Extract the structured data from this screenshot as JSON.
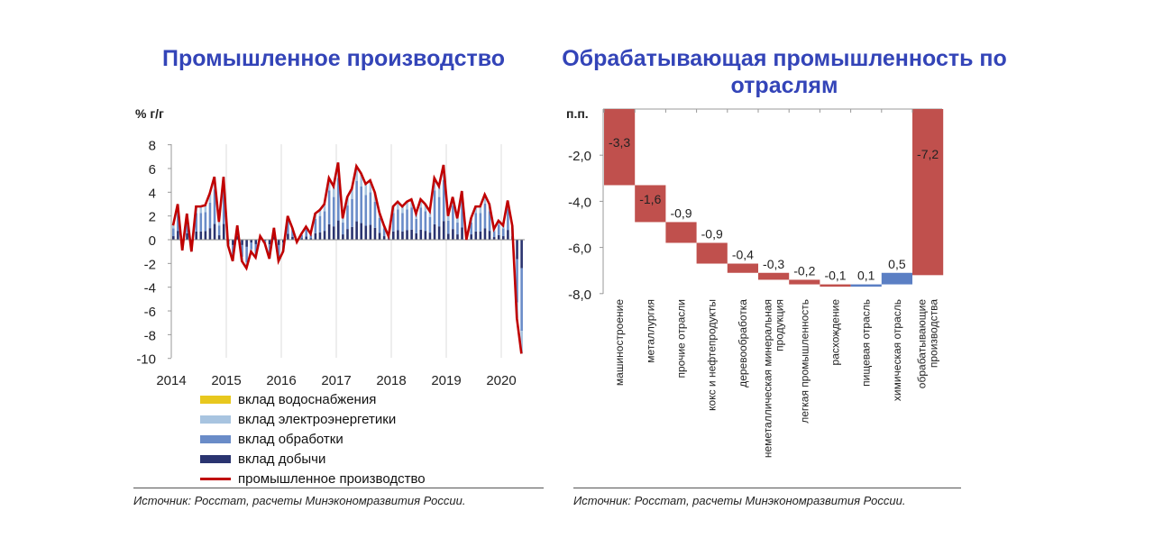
{
  "chart_data": [
    {
      "type": "bar+line",
      "title": "Промышленное производство",
      "ylabel": "% г/г",
      "ylim": [
        -10,
        8
      ],
      "yticks": [
        "8",
        "6",
        "4",
        "2",
        "0",
        "-2",
        "-4",
        "-6",
        "-8",
        "-10"
      ],
      "xticks": [
        "2014",
        "2015",
        "2016",
        "2017",
        "2018",
        "2019",
        "2020"
      ],
      "legend": [
        "вклад водоснабжения",
        "вклад электроэнергетики",
        "вклад обработки",
        "вклад добычи",
        "промышленное производство"
      ],
      "colors": {
        "water": "#e8c81e",
        "energy": "#a8c4e0",
        "manufacturing": "#6a8cc8",
        "mining": "#2a3470",
        "line": "#c00000"
      },
      "series_line": [
        1.2,
        3.0,
        -0.9,
        2.2,
        -1.0,
        2.8,
        2.8,
        2.9,
        3.9,
        5.3,
        1.5,
        5.3,
        -0.5,
        -1.8,
        1.2,
        -1.8,
        -2.4,
        -1.0,
        -1.5,
        0.3,
        -0.3,
        -1.6,
        1.0,
        -1.8,
        -1.0,
        2.0,
        1.0,
        -0.2,
        0.5,
        1.1,
        0.5,
        2.2,
        2.5,
        3.0,
        5.2,
        4.5,
        6.5,
        1.8,
        3.6,
        4.3,
        6.2,
        5.6,
        4.7,
        5.0,
        4.0,
        2.3,
        1.2,
        0.3,
        2.8,
        3.2,
        2.8,
        3.2,
        3.4,
        2.2,
        3.4,
        3.0,
        2.4,
        5.2,
        4.5,
        6.3,
        2.0,
        3.6,
        1.8,
        4.1,
        0.0,
        1.8,
        2.8,
        2.8,
        3.8,
        3.0,
        0.9,
        1.6,
        1.2,
        3.3,
        1.2,
        -6.6,
        -9.6
      ]
    },
    {
      "type": "waterfall",
      "title": "Обрабатывающая промышленность по отраслям",
      "ylabel": "п.п.",
      "ylim": [
        -8,
        0
      ],
      "yticks": [
        "-2,0",
        "-4,0",
        "-6,0",
        "-8,0"
      ],
      "categories": [
        "машиностроение",
        "металлургия",
        "прочие отрасли",
        "кокс и нефтепродукты",
        "деревообработка",
        "неметаллическая минеральная продукция",
        "легкая промышленность",
        "расхождение",
        "пищевая отрасль",
        "химическая отрасль",
        "обрабатывающие производства"
      ],
      "values": [
        -3.3,
        -1.6,
        -0.9,
        -0.9,
        -0.4,
        -0.3,
        -0.2,
        -0.1,
        0.1,
        0.5,
        -7.2
      ],
      "labels": [
        "-3,3",
        "-1,6",
        "-0,9",
        "-0,9",
        "-0,4",
        "-0,3",
        "-0,2",
        "-0,1",
        "0,1",
        "0,5",
        "-7,2"
      ],
      "colors": {
        "negative": "#c0504d",
        "positive": "#5b7fc4"
      }
    }
  ],
  "source": "Источник: Росстат, расчеты Минэкономразвития России."
}
